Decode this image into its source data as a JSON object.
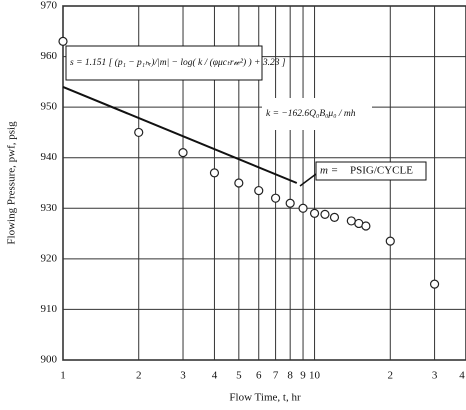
{
  "chart_data": {
    "type": "scatter",
    "x_label": "Flow Time, t, hr",
    "y_label": "Flowing Pressure, pwf, psig",
    "log_x": true,
    "grid": true,
    "xlim": [
      1,
      40
    ],
    "ylim": [
      900,
      970
    ],
    "xticks": [
      1,
      2,
      3,
      4,
      5,
      6,
      7,
      8,
      9,
      10,
      {
        "value": 20,
        "label": "2"
      },
      {
        "value": 30,
        "label": "3"
      },
      {
        "value": 40,
        "label": "4"
      }
    ],
    "yticks": [
      900,
      910,
      920,
      930,
      940,
      950,
      960,
      970
    ],
    "series": [
      {
        "name": null,
        "marker": "open-circle",
        "color": "#222222",
        "x": [
          1,
          2,
          3,
          4,
          5,
          6,
          7,
          8,
          9,
          10,
          11,
          12,
          14,
          15,
          16,
          20,
          30
        ],
        "values": [
          963,
          945,
          941,
          937,
          935,
          933.5,
          932,
          931,
          930,
          929,
          928.8,
          928.2,
          927.5,
          927,
          926.5,
          923.5,
          915
        ]
      },
      {
        "name": null,
        "marker": "line",
        "color": "#111111",
        "x": [
          1,
          8.5
        ],
        "values": [
          954,
          935
        ]
      }
    ],
    "annotations": [
      "s = 1.151 [ (p₁ − p₁ₕᵣ)/|m| − log( k / (φμcₜr𝓌²) ) + 3.23 ]",
      "k = −162.6Q₀B₀μ₀ / mh",
      "m =",
      "PSIG/CYCLE"
    ]
  }
}
